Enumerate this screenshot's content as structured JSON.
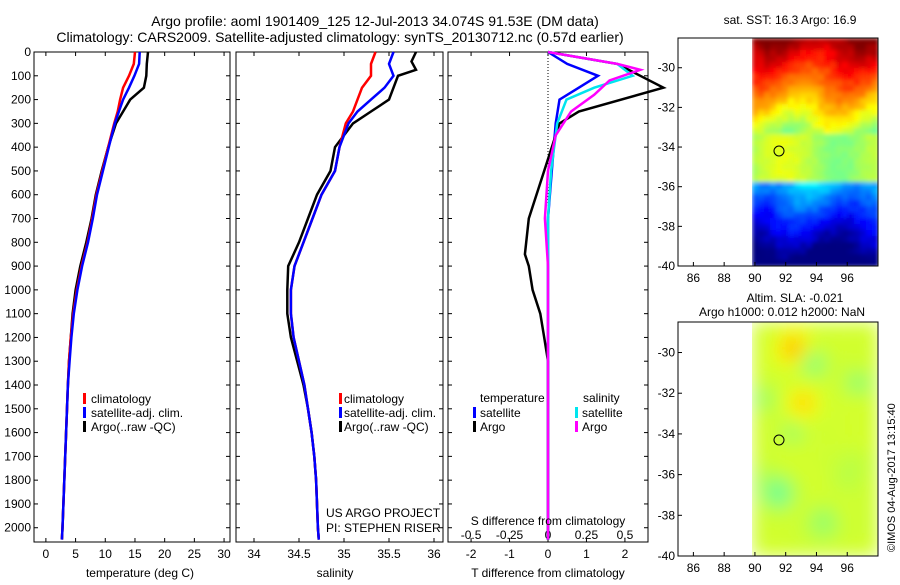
{
  "header": {
    "line1": "Argo profile: aoml 1901409_125 12-Jul-2013 34.074S 91.53E (DM data)",
    "line2": "Climatology: CARS2009. Satellite-adjusted climatology: synTS_20130712.nc (0.57d earlier)"
  },
  "colors": {
    "climatology": "#ff0000",
    "satellite": "#0000ff",
    "argo": "#000000",
    "salinity_satellite": "#00e5ee",
    "salinity_argo": "#ff00ff"
  },
  "panels": {
    "temperature": {
      "xlabel": "temperature (deg C)",
      "xticks": [
        "0",
        "5",
        "10",
        "15",
        "20",
        "25",
        "30"
      ],
      "legend": [
        "climatology",
        "satellite-adj. clim.",
        "Argo(..raw -QC)"
      ]
    },
    "salinity": {
      "xlabel": "salinity",
      "xticks": [
        "34",
        "34.5",
        "35",
        "35.5",
        "36"
      ],
      "legend": [
        "climatology",
        "satellite-adj. clim.",
        "Argo(..raw -QC)"
      ],
      "credit1": "US ARGO PROJECT",
      "credit2": "PI: STEPHEN RISER"
    },
    "difference": {
      "top_label": "S difference from climatology",
      "top_ticks": [
        "-0.5",
        "-0.25",
        "0",
        "0.25",
        "0.5"
      ],
      "xlabel": "T difference from climatology",
      "xticks": [
        "-2",
        "-1",
        "0",
        "1",
        "2"
      ],
      "legend_temp_title": "temperature",
      "legend_sal_title": "salinity",
      "legend_temp": [
        "satellite",
        "Argo"
      ],
      "legend_sal": [
        "satellite",
        "Argo"
      ]
    },
    "sst_map": {
      "title": "sat. SST: 16.3 Argo: 16.9",
      "xticks": [
        "86",
        "88",
        "90",
        "92",
        "94",
        "96"
      ],
      "yticks": [
        "-30",
        "-32",
        "-34",
        "-36",
        "-38",
        "-40"
      ]
    },
    "sla_map": {
      "title1": "Altim. SLA: -0.021",
      "title2": "Argo h1000: 0.012 h2000: NaN",
      "xticks": [
        "86",
        "88",
        "90",
        "92",
        "94",
        "96"
      ],
      "yticks": [
        "-30",
        "-32",
        "-34",
        "-36",
        "-38",
        "-40"
      ],
      "side_text": "©IMOS 04-Aug-2017 13:15:40"
    }
  },
  "depth_ticks": [
    "0",
    "100",
    "200",
    "300",
    "400",
    "500",
    "600",
    "700",
    "800",
    "900",
    "1000",
    "1100",
    "1200",
    "1300",
    "1400",
    "1500",
    "1600",
    "1700",
    "1800",
    "1900",
    "2000"
  ],
  "chart_data": [
    {
      "type": "line",
      "name": "temperature",
      "xlim": [
        -2,
        31
      ],
      "ylim": [
        0,
        2060
      ],
      "y_reversed": true,
      "series": [
        {
          "name": "climatology",
          "points": [
            [
              15,
              0
            ],
            [
              14.8,
              50
            ],
            [
              14,
              100
            ],
            [
              13,
              150
            ],
            [
              12.5,
              200
            ],
            [
              12.1,
              250
            ],
            [
              11.5,
              300
            ],
            [
              10.5,
              400
            ],
            [
              9.5,
              500
            ],
            [
              8.5,
              600
            ],
            [
              7.8,
              700
            ],
            [
              7,
              800
            ],
            [
              6,
              900
            ],
            [
              5.2,
              1000
            ],
            [
              4.6,
              1100
            ],
            [
              4.2,
              1200
            ],
            [
              3.9,
              1300
            ],
            [
              3.7,
              1400
            ],
            [
              3.4,
              1600
            ],
            [
              3.1,
              1800
            ],
            [
              2.8,
              2000
            ],
            [
              2.7,
              2050
            ]
          ]
        },
        {
          "name": "satellite-adj. clim.",
          "points": [
            [
              15.8,
              0
            ],
            [
              15.7,
              50
            ],
            [
              14.9,
              100
            ],
            [
              14,
              150
            ],
            [
              13,
              200
            ],
            [
              12.3,
              250
            ],
            [
              11.6,
              300
            ],
            [
              10.6,
              400
            ],
            [
              9.6,
              500
            ],
            [
              8.6,
              600
            ],
            [
              7.9,
              700
            ],
            [
              7.1,
              800
            ],
            [
              6.1,
              900
            ],
            [
              5.3,
              1000
            ],
            [
              4.7,
              1100
            ],
            [
              4.3,
              1200
            ],
            [
              4,
              1300
            ],
            [
              3.7,
              1400
            ],
            [
              3.4,
              1600
            ],
            [
              3.1,
              1800
            ],
            [
              2.8,
              2000
            ],
            [
              2.7,
              2050
            ]
          ]
        },
        {
          "name": "Argo(..raw -QC)",
          "points": [
            [
              17.2,
              0
            ],
            [
              17,
              50
            ],
            [
              16.9,
              100
            ],
            [
              16.5,
              150
            ],
            [
              14.2,
              200
            ],
            [
              13,
              250
            ],
            [
              11.8,
              300
            ],
            [
              10.5,
              400
            ],
            [
              9.4,
              500
            ],
            [
              8.4,
              600
            ],
            [
              7.7,
              700
            ],
            [
              6.8,
              800
            ],
            [
              5.8,
              900
            ],
            [
              5,
              1000
            ],
            [
              4.5,
              1100
            ],
            [
              4.2,
              1200
            ],
            [
              3.9,
              1300
            ],
            [
              3.7,
              1400
            ],
            [
              3.4,
              1600
            ],
            [
              3.1,
              1800
            ],
            [
              2.8,
              2000
            ],
            [
              2.7,
              2050
            ]
          ]
        }
      ]
    },
    {
      "type": "line",
      "name": "salinity",
      "xlim": [
        33.8,
        36.1
      ],
      "ylim": [
        0,
        2060
      ],
      "y_reversed": true,
      "series": [
        {
          "name": "climatology",
          "points": [
            [
              35.35,
              0
            ],
            [
              35.3,
              50
            ],
            [
              35.3,
              100
            ],
            [
              35.2,
              150
            ],
            [
              35.15,
              200
            ],
            [
              35.1,
              250
            ],
            [
              35.02,
              300
            ],
            [
              34.95,
              400
            ],
            [
              34.9,
              500
            ],
            [
              34.75,
              600
            ],
            [
              34.65,
              700
            ],
            [
              34.55,
              800
            ],
            [
              34.45,
              900
            ],
            [
              34.41,
              1000
            ],
            [
              34.41,
              1100
            ],
            [
              34.44,
              1200
            ],
            [
              34.5,
              1300
            ],
            [
              34.56,
              1400
            ],
            [
              34.6,
              1500
            ],
            [
              34.64,
              1600
            ],
            [
              34.67,
              1700
            ],
            [
              34.69,
              1800
            ],
            [
              34.7,
              1900
            ],
            [
              34.71,
              2000
            ],
            [
              34.72,
              2050
            ]
          ]
        },
        {
          "name": "satellite-adj. clim.",
          "points": [
            [
              35.55,
              0
            ],
            [
              35.5,
              50
            ],
            [
              35.55,
              100
            ],
            [
              35.45,
              150
            ],
            [
              35.3,
              200
            ],
            [
              35.15,
              250
            ],
            [
              35.05,
              300
            ],
            [
              34.95,
              400
            ],
            [
              34.9,
              500
            ],
            [
              34.75,
              600
            ],
            [
              34.65,
              700
            ],
            [
              34.55,
              800
            ],
            [
              34.45,
              900
            ],
            [
              34.41,
              1000
            ],
            [
              34.41,
              1100
            ],
            [
              34.44,
              1200
            ],
            [
              34.5,
              1300
            ],
            [
              34.56,
              1400
            ],
            [
              34.6,
              1500
            ],
            [
              34.64,
              1600
            ],
            [
              34.67,
              1700
            ],
            [
              34.69,
              1800
            ],
            [
              34.7,
              1900
            ],
            [
              34.71,
              2000
            ],
            [
              34.72,
              2050
            ]
          ]
        },
        {
          "name": "Argo(..raw -QC)",
          "points": [
            [
              35.8,
              0
            ],
            [
              35.75,
              40
            ],
            [
              35.8,
              75
            ],
            [
              35.6,
              100
            ],
            [
              35.55,
              150
            ],
            [
              35.5,
              200
            ],
            [
              35.3,
              250
            ],
            [
              35.1,
              300
            ],
            [
              34.9,
              400
            ],
            [
              34.85,
              500
            ],
            [
              34.7,
              600
            ],
            [
              34.6,
              700
            ],
            [
              34.5,
              800
            ],
            [
              34.38,
              900
            ],
            [
              34.37,
              1000
            ],
            [
              34.37,
              1100
            ],
            [
              34.41,
              1200
            ],
            [
              34.48,
              1300
            ],
            [
              34.55,
              1400
            ],
            [
              34.6,
              1500
            ],
            [
              34.64,
              1600
            ],
            [
              34.67,
              1700
            ],
            [
              34.69,
              1800
            ],
            [
              34.7,
              1900
            ],
            [
              34.71,
              2000
            ],
            [
              34.72,
              2050
            ]
          ]
        }
      ]
    },
    {
      "type": "line",
      "name": "difference",
      "xlim": [
        -2.6,
        2.6
      ],
      "ylim": [
        0,
        2060
      ],
      "y_reversed": true,
      "series": [
        {
          "name": "temperature satellite",
          "points": [
            [
              0,
              0
            ],
            [
              0.5,
              50
            ],
            [
              1.3,
              100
            ],
            [
              0.8,
              150
            ],
            [
              0.3,
              200
            ],
            [
              0.2,
              300
            ],
            [
              0.1,
              500
            ],
            [
              0,
              700
            ],
            [
              0,
              1000
            ],
            [
              0,
              1500
            ],
            [
              0,
              2050
            ]
          ]
        },
        {
          "name": "temperature Argo",
          "points": [
            [
              0,
              0
            ],
            [
              1.8,
              50
            ],
            [
              2.4,
              100
            ],
            [
              3,
              150
            ],
            [
              0.8,
              250
            ],
            [
              0.3,
              300
            ],
            [
              -0.1,
              500
            ],
            [
              -0.5,
              700
            ],
            [
              -0.6,
              850
            ],
            [
              -0.5,
              900
            ],
            [
              -0.4,
              1000
            ],
            [
              -0.2,
              1100
            ],
            [
              -0.1,
              1200
            ],
            [
              0,
              1300
            ],
            [
              0,
              1500
            ],
            [
              0,
              2050
            ]
          ]
        },
        {
          "name": "salinity satellite",
          "points": [
            [
              0,
              0
            ],
            [
              0.45,
              50
            ],
            [
              0.55,
              100
            ],
            [
              0.3,
              150
            ],
            [
              0.12,
              200
            ],
            [
              0.06,
              300
            ],
            [
              0.02,
              500
            ],
            [
              0,
              700
            ],
            [
              0,
              1000
            ],
            [
              0,
              1500
            ],
            [
              0,
              2050
            ]
          ]
        },
        {
          "name": "salinity Argo",
          "points": [
            [
              0,
              0
            ],
            [
              0.45,
              50
            ],
            [
              0.6,
              75
            ],
            [
              0.4,
              120
            ],
            [
              0.3,
              180
            ],
            [
              0.15,
              250
            ],
            [
              0.05,
              350
            ],
            [
              0,
              500
            ],
            [
              -0.02,
              700
            ],
            [
              0,
              900
            ],
            [
              0,
              1100
            ],
            [
              0,
              1500
            ],
            [
              0,
              2050
            ]
          ]
        }
      ]
    },
    {
      "type": "heatmap",
      "name": "sst_map",
      "xlim": [
        85,
        98
      ],
      "ylim": [
        -40,
        -28.5
      ]
    },
    {
      "type": "heatmap",
      "name": "sla_map",
      "xlim": [
        85,
        98
      ],
      "ylim": [
        -40,
        -28.5
      ]
    }
  ]
}
